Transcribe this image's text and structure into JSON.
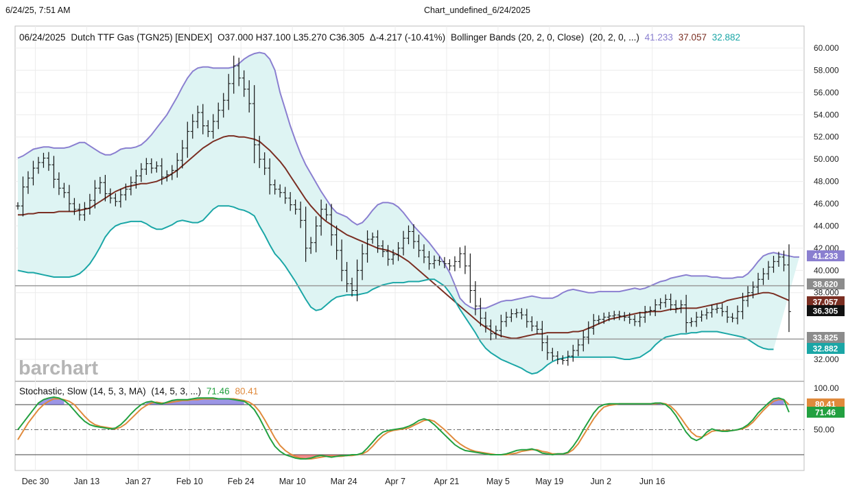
{
  "page": {
    "timestamp": "6/24/25, 7:51 AM",
    "window_title": "Chart_undefined_6/24/2025"
  },
  "price_panel": {
    "info": {
      "date": "06/24/2025",
      "instrument": "Dutch TTF Gas (TGN25) [ENDEX]",
      "ohlc": "O37.000  H37.100  L35.270  C36.305",
      "change": "Δ-4.217 (-10.41%)",
      "study": "Bollinger Bands (20, 2, 0, Close)",
      "study_params": "(20, 2, 0, ...)",
      "upper_value": "41.233",
      "middle_value": "37.057",
      "lower_value": "32.882"
    },
    "colors": {
      "upper": "#8a7fd0",
      "middle": "#7a2e22",
      "lower": "#1aa6a6",
      "fill": "#def4f3",
      "bar": "#111111"
    },
    "price_labels": [
      {
        "text": "41.233",
        "price": 41.233,
        "color": "#8a7fd0",
        "text_color": "#ffffff"
      },
      {
        "text": "38.620",
        "price": 38.62,
        "color": "#8c8c8c",
        "text_color": "#ffffff"
      },
      {
        "text": "37.057",
        "price": 37.057,
        "color": "#7a2e22",
        "text_color": "#ffffff"
      },
      {
        "text": "36.305",
        "price": 36.305,
        "color": "#111111",
        "text_color": "#ffffff"
      },
      {
        "text": "33.825",
        "price": 33.825,
        "color": "#8c8c8c",
        "text_color": "#ffffff"
      },
      {
        "text": "32.882",
        "price": 32.882,
        "color": "#1aa6a6",
        "text_color": "#ffffff"
      }
    ],
    "h_lines": [
      38.62,
      33.825
    ]
  },
  "stoch_panel": {
    "title": "Stochastic, Slow (14, 5, 3, MA)",
    "params": "(14, 5, 3, ...)",
    "k_value": "71.46",
    "d_value": "80.41",
    "colors": {
      "k": "#22a040",
      "d": "#e08a3c",
      "ob_fill": "#4a3fcf",
      "os_fill": "#e23030"
    },
    "levels": {
      "upper": 80,
      "middle": 50,
      "lower": 20
    },
    "tick_label": "50.00",
    "top_label": "100.00",
    "value_labels": [
      {
        "text": "80.41",
        "value": 80.41,
        "color": "#e08a3c"
      },
      {
        "text": "71.46",
        "value": 71.46,
        "color": "#22a040"
      }
    ]
  },
  "watermark": "barchart",
  "chart_data": {
    "type": "line",
    "title": "06/24/2025 Dutch TTF Gas (TGN25) [ENDEX]",
    "x_tick_labels": [
      "Dec 30",
      "Jan 13",
      "Jan 27",
      "Feb 10",
      "Feb 24",
      "Mar 10",
      "Mar 24",
      "Apr 7",
      "Apr 21",
      "May 5",
      "May 19",
      "Jun 2",
      "Jun 16"
    ],
    "y_tick_labels": [
      "60.000",
      "58.000",
      "56.000",
      "54.000",
      "52.000",
      "50.000",
      "48.000",
      "46.000",
      "44.000",
      "42.000",
      "40.000",
      "38.000",
      "32.000"
    ],
    "ylim": [
      31.5,
      60.5
    ],
    "grid": true,
    "close": [
      45.8,
      47.5,
      48.3,
      49.2,
      49.7,
      50.1,
      49.5,
      48.2,
      47.4,
      47.0,
      46.0,
      45.5,
      45.0,
      45.6,
      46.3,
      47.4,
      47.9,
      46.9,
      46.5,
      46.2,
      46.8,
      47.3,
      47.9,
      48.5,
      49.1,
      49.6,
      49.2,
      49.4,
      48.4,
      48.6,
      49.0,
      49.9,
      51.0,
      52.5,
      53.4,
      54.2,
      53.0,
      52.5,
      53.4,
      54.4,
      55.3,
      56.8,
      58.4,
      57.3,
      56.3,
      55.0,
      51.3,
      50.0,
      49.2,
      47.7,
      47.3,
      47.0,
      46.5,
      45.9,
      45.5,
      44.5,
      42.0,
      42.5,
      44.0,
      45.5,
      45.0,
      43.2,
      41.8,
      40.0,
      38.8,
      38.2,
      40.0,
      41.5,
      42.8,
      43.0,
      42.2,
      41.7,
      41.0,
      41.4,
      42.0,
      42.9,
      43.5,
      42.6,
      41.8,
      41.2,
      40.6,
      40.9,
      40.8,
      40.6,
      40.4,
      40.8,
      41.5,
      40.4,
      38.2,
      36.8,
      35.7,
      35.0,
      34.3,
      34.6,
      35.4,
      35.8,
      36.1,
      36.2,
      36.0,
      35.4,
      35.0,
      34.7,
      33.5,
      32.6,
      32.3,
      32.0,
      31.9,
      32.3,
      32.8,
      33.3,
      34.0,
      34.8,
      35.5,
      35.6,
      35.8,
      35.9,
      36.0,
      35.9,
      35.8,
      35.6,
      35.4,
      35.8,
      36.3,
      36.4,
      36.9,
      37.1,
      37.4,
      36.9,
      36.6,
      36.9,
      35.3,
      35.4,
      35.8,
      36.0,
      36.2,
      36.5,
      36.6,
      36.3,
      35.8,
      35.7,
      36.3,
      37.3,
      38.0,
      38.5,
      39.2,
      39.7,
      40.3,
      40.8,
      41.2,
      40.5,
      36.3
    ],
    "series": [
      {
        "name": "Upper Band",
        "values": [
          50.1,
          50.3,
          50.6,
          50.9,
          51.0,
          51.1,
          51.1,
          51.0,
          51.0,
          51.0,
          51.1,
          51.3,
          51.5,
          51.5,
          51.2,
          50.9,
          50.6,
          50.4,
          50.4,
          50.6,
          50.9,
          51.0,
          51.0,
          51.1,
          51.3,
          51.7,
          52.2,
          52.8,
          53.4,
          54.0,
          54.8,
          55.6,
          56.5,
          57.3,
          57.9,
          58.2,
          58.3,
          58.3,
          58.2,
          58.2,
          58.2,
          58.2,
          58.3,
          58.6,
          59.0,
          59.3,
          59.5,
          59.6,
          59.5,
          59.0,
          58.0,
          56.0,
          54.5,
          53.0,
          51.7,
          50.5,
          49.5,
          48.7,
          47.9,
          47.1,
          46.4,
          45.7,
          45.2,
          45.0,
          44.8,
          44.4,
          44.1,
          44.3,
          44.8,
          45.4,
          45.9,
          46.1,
          46.1,
          46.0,
          45.7,
          45.2,
          44.6,
          44.0,
          43.5,
          43.0,
          42.5,
          41.9,
          41.3,
          40.6,
          39.8,
          38.7,
          37.5,
          37.0,
          36.7,
          36.5,
          36.6,
          36.6,
          36.8,
          37.0,
          37.2,
          37.3,
          37.3,
          37.4,
          37.5,
          37.6,
          37.7,
          37.6,
          37.5,
          37.5,
          37.5,
          37.7,
          38.0,
          38.2,
          38.3,
          38.2,
          38.1,
          38.0,
          38.0,
          38.1,
          38.1,
          38.1,
          38.1,
          38.1,
          38.2,
          38.3,
          38.4,
          38.3,
          38.4,
          38.6,
          38.8,
          39.0,
          39.1,
          39.3,
          39.4,
          39.5,
          39.6,
          39.5,
          39.5,
          39.5,
          39.5,
          39.4,
          39.4,
          39.3,
          39.3,
          39.3,
          39.4,
          39.4,
          39.7,
          40.2,
          40.8,
          41.3,
          41.5,
          41.6,
          41.5,
          41.4,
          41.3,
          41.2,
          41.2
        ]
      },
      {
        "name": "Middle Band",
        "values": [
          45.0,
          45.0,
          45.1,
          45.1,
          45.2,
          45.2,
          45.2,
          45.2,
          45.3,
          45.3,
          45.3,
          45.3,
          45.4,
          45.5,
          45.6,
          45.9,
          46.2,
          46.5,
          46.8,
          47.1,
          47.3,
          47.5,
          47.6,
          47.7,
          47.8,
          47.8,
          47.9,
          48.0,
          48.2,
          48.4,
          48.7,
          49.0,
          49.4,
          49.8,
          50.2,
          50.6,
          51.0,
          51.3,
          51.6,
          51.8,
          52.0,
          52.1,
          52.1,
          52.0,
          52.0,
          51.9,
          51.8,
          51.6,
          51.2,
          50.8,
          50.3,
          49.8,
          49.2,
          48.5,
          47.8,
          47.1,
          46.4,
          45.8,
          45.3,
          44.8,
          44.4,
          44.1,
          43.8,
          43.5,
          43.2,
          43.0,
          42.8,
          42.6,
          42.4,
          42.2,
          42.0,
          41.9,
          41.8,
          41.6,
          41.4,
          41.1,
          40.8,
          40.4,
          40.0,
          39.6,
          39.2,
          38.8,
          38.4,
          38.0,
          37.6,
          37.2,
          36.8,
          36.4,
          36.0,
          35.6,
          35.2,
          34.9,
          34.6,
          34.3,
          34.1,
          34.0,
          33.9,
          33.9,
          34.0,
          34.1,
          34.2,
          34.3,
          34.3,
          34.4,
          34.4,
          34.4,
          34.4,
          34.4,
          34.5,
          34.5,
          34.6,
          34.8,
          35.0,
          35.2,
          35.4,
          35.6,
          35.7,
          35.8,
          35.9,
          36.0,
          36.1,
          36.2,
          36.2,
          36.3,
          36.3,
          36.3,
          36.4,
          36.5,
          36.5,
          36.6,
          36.6,
          36.6,
          36.6,
          36.7,
          36.8,
          36.9,
          37.0,
          37.1,
          37.3,
          37.4,
          37.5,
          37.6,
          37.7,
          37.8,
          37.9,
          38.0,
          38.0,
          37.9,
          37.7,
          37.5,
          37.3
        ]
      },
      {
        "name": "Lower Band",
        "values": [
          40.0,
          39.9,
          39.8,
          39.8,
          39.7,
          39.6,
          39.5,
          39.4,
          39.4,
          39.4,
          39.4,
          39.5,
          39.7,
          40.1,
          40.6,
          41.3,
          42.1,
          43.0,
          43.6,
          44.0,
          44.2,
          44.3,
          44.4,
          44.4,
          44.4,
          44.2,
          43.9,
          43.7,
          43.7,
          43.9,
          44.1,
          44.4,
          44.5,
          44.4,
          44.3,
          44.3,
          44.5,
          45.0,
          45.5,
          45.8,
          45.8,
          45.8,
          45.7,
          45.5,
          45.4,
          45.2,
          44.9,
          44.0,
          43.2,
          42.3,
          41.5,
          41.0,
          40.4,
          39.7,
          39.0,
          38.2,
          37.4,
          36.7,
          36.4,
          36.5,
          36.9,
          37.3,
          37.6,
          37.7,
          37.8,
          37.8,
          37.8,
          37.9,
          38.0,
          38.3,
          38.5,
          38.7,
          38.8,
          38.9,
          38.9,
          38.9,
          39.0,
          39.0,
          39.0,
          39.1,
          39.2,
          39.2,
          38.9,
          38.6,
          38.0,
          37.3,
          36.5,
          35.8,
          35.1,
          34.4,
          33.6,
          33.0,
          32.6,
          32.3,
          32.0,
          31.8,
          31.6,
          31.4,
          31.2,
          30.9,
          30.7,
          30.8,
          31.1,
          31.5,
          31.8,
          32.0,
          32.1,
          32.2,
          32.2,
          32.2,
          32.2,
          32.2,
          32.2,
          32.2,
          32.2,
          32.2,
          32.2,
          32.1,
          32.0,
          32.0,
          32.1,
          32.2,
          32.5,
          32.8,
          33.3,
          33.7,
          34.0,
          34.1,
          34.2,
          34.3,
          34.3,
          34.4,
          34.4,
          34.5,
          34.5,
          34.5,
          34.5,
          34.4,
          34.3,
          34.2,
          34.1,
          34.0,
          33.8,
          33.5,
          33.2,
          33.0,
          32.9,
          32.9
        ]
      }
    ],
    "stochastic": {
      "ylim": [
        0,
        100
      ],
      "series": [
        {
          "name": "%K",
          "values": [
            50,
            58,
            66,
            74,
            82,
            86,
            88,
            89,
            88,
            85,
            80,
            73,
            66,
            60,
            56,
            54,
            53,
            52,
            51,
            52,
            56,
            62,
            69,
            75,
            80,
            83,
            84,
            82,
            81,
            83,
            85,
            86,
            86,
            86,
            87,
            88,
            88,
            88,
            88,
            87,
            87,
            87,
            86,
            85,
            84,
            80,
            74,
            64,
            52,
            40,
            30,
            24,
            20,
            18,
            16,
            15,
            15,
            16,
            18,
            19,
            18,
            17,
            18,
            19,
            19,
            20,
            20,
            22,
            28,
            35,
            42,
            47,
            49,
            50,
            51,
            52,
            54,
            57,
            61,
            63,
            61,
            56,
            50,
            44,
            38,
            32,
            28,
            25,
            24,
            23,
            22,
            21,
            20,
            20,
            20,
            21,
            23,
            25,
            26,
            26,
            27,
            25,
            22,
            21,
            20,
            21,
            21,
            23,
            30,
            39,
            50,
            60,
            70,
            77,
            80,
            81,
            81,
            81,
            81,
            81,
            81,
            81,
            81,
            81,
            82,
            82,
            80,
            75,
            67,
            57,
            47,
            40,
            37,
            40,
            47,
            51,
            49,
            48,
            48,
            49,
            50,
            52,
            56,
            62,
            70,
            76,
            82,
            87,
            88,
            86,
            71
          ]
        },
        {
          "name": "%D",
          "values": [
            38,
            48,
            58,
            66,
            74,
            80,
            84,
            87,
            87,
            86,
            84,
            80,
            73,
            66,
            60,
            56,
            54,
            53,
            52,
            51,
            53,
            57,
            63,
            69,
            75,
            79,
            82,
            83,
            82,
            82,
            83,
            84,
            85,
            85,
            86,
            86,
            87,
            87,
            87,
            87,
            87,
            87,
            87,
            86,
            85,
            83,
            79,
            72,
            62,
            51,
            40,
            31,
            25,
            21,
            18,
            16,
            15,
            15,
            16,
            17,
            18,
            18,
            18,
            18,
            19,
            19,
            20,
            21,
            24,
            30,
            37,
            43,
            47,
            49,
            50,
            51,
            52,
            55,
            58,
            61,
            62,
            60,
            55,
            50,
            44,
            38,
            33,
            29,
            26,
            24,
            23,
            22,
            21,
            20,
            20,
            20,
            21,
            22,
            24,
            25,
            26,
            26,
            24,
            23,
            21,
            21,
            21,
            22,
            26,
            33,
            43,
            53,
            63,
            71,
            77,
            79,
            80,
            81,
            81,
            81,
            81,
            81,
            81,
            81,
            81,
            82,
            81,
            78,
            72,
            64,
            55,
            47,
            42,
            41,
            44,
            48,
            49,
            49,
            49,
            49,
            50,
            51,
            54,
            59,
            66,
            73,
            79,
            84,
            86,
            86,
            80
          ]
        }
      ]
    }
  }
}
